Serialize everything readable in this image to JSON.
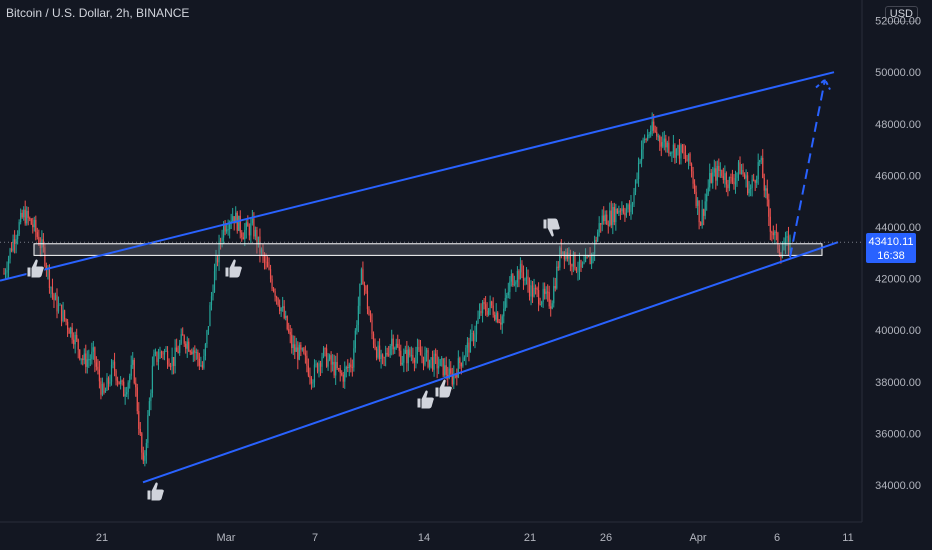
{
  "header": {
    "title": "Bitcoin / U.S. Dollar, 2h, BINANCE",
    "currency": "USD"
  },
  "price_tag": {
    "price": "43410.11",
    "countdown": "16:38"
  },
  "colors": {
    "background": "#131722",
    "up": "#26a69a",
    "down": "#ef5350",
    "channel": "#2962ff",
    "zone_fill": "#787b86",
    "zone_border": "#ffffff",
    "grid": "#1e222d"
  },
  "icons": [
    "thumbs-up-icon",
    "thumbs-down-icon"
  ],
  "chart_data": {
    "type": "candlestick",
    "title": "Bitcoin / U.S. Dollar, 2h, BINANCE",
    "ylim": [
      33000,
      52800
    ],
    "y_ticks": [
      34000,
      36000,
      38000,
      40000,
      42000,
      44000,
      46000,
      48000,
      50000,
      52000
    ],
    "y_tick_labels": [
      "34000.00",
      "36000.00",
      "38000.00",
      "40000.00",
      "42000.00",
      "44000.00",
      "46000.00",
      "48000.00",
      "50000.00",
      "52000.00"
    ],
    "x_tick_labels": [
      "21",
      "Mar",
      "7",
      "14",
      "21",
      "26",
      "Apr",
      "6",
      "11"
    ],
    "price_anchors": [
      [
        0,
        42200
      ],
      [
        1,
        43600
      ],
      [
        2,
        44500
      ],
      [
        3,
        44000
      ],
      [
        4,
        43000
      ],
      [
        5,
        41200
      ],
      [
        6,
        40500
      ],
      [
        7,
        39800
      ],
      [
        8,
        38800
      ],
      [
        9,
        39000
      ],
      [
        10,
        37400
      ],
      [
        11,
        38600
      ],
      [
        12,
        37600
      ],
      [
        13,
        38600
      ],
      [
        14,
        34600
      ],
      [
        15,
        38800
      ],
      [
        16,
        39200
      ],
      [
        17,
        38800
      ],
      [
        18,
        39700
      ],
      [
        19,
        39300
      ],
      [
        20,
        38500
      ],
      [
        21,
        41800
      ],
      [
        22,
        44000
      ],
      [
        23,
        44500
      ],
      [
        24,
        43800
      ],
      [
        25,
        44000
      ],
      [
        26,
        42800
      ],
      [
        27,
        41800
      ],
      [
        28,
        40700
      ],
      [
        29,
        39300
      ],
      [
        30,
        39000
      ],
      [
        31,
        38200
      ],
      [
        32,
        39100
      ],
      [
        33,
        38600
      ],
      [
        34,
        38200
      ],
      [
        35,
        38800
      ],
      [
        36,
        42300
      ],
      [
        37,
        39800
      ],
      [
        38,
        38600
      ],
      [
        39,
        39700
      ],
      [
        40,
        38900
      ],
      [
        41,
        39100
      ],
      [
        42,
        39000
      ],
      [
        43,
        38800
      ],
      [
        44,
        38600
      ],
      [
        45,
        38100
      ],
      [
        46,
        38900
      ],
      [
        47,
        39600
      ],
      [
        48,
        40800
      ],
      [
        49,
        40900
      ],
      [
        50,
        40400
      ],
      [
        51,
        42000
      ],
      [
        52,
        42300
      ],
      [
        53,
        41500
      ],
      [
        54,
        41300
      ],
      [
        55,
        41100
      ],
      [
        56,
        43200
      ],
      [
        57,
        42800
      ],
      [
        58,
        42300
      ],
      [
        59,
        42800
      ],
      [
        60,
        44300
      ],
      [
        61,
        44400
      ],
      [
        62,
        44800
      ],
      [
        63,
        44600
      ],
      [
        64,
        47000
      ],
      [
        65,
        47800
      ],
      [
        66,
        47400
      ],
      [
        67,
        47100
      ],
      [
        68,
        46900
      ],
      [
        69,
        46400
      ],
      [
        70,
        44200
      ],
      [
        71,
        45900
      ],
      [
        72,
        46200
      ],
      [
        73,
        45700
      ],
      [
        74,
        46300
      ],
      [
        75,
        45400
      ],
      [
        76,
        46600
      ],
      [
        77,
        44100
      ],
      [
        78,
        43100
      ],
      [
        79,
        43410
      ]
    ],
    "channel_upper": {
      "start": {
        "x": "Feb 16",
        "y": 42400
      },
      "end": {
        "x": "Apr 9",
        "y": 50000
      }
    },
    "channel_lower": {
      "start": {
        "x": "Feb 24",
        "y": 34300
      },
      "end": {
        "x": "Apr 9",
        "y": 43450
      }
    },
    "support_zone": {
      "from": 42900,
      "to": 43350
    },
    "projection_arrow": {
      "from": 42900,
      "to": 49600
    },
    "last_price": 43410.11,
    "grid": false,
    "candle_colors": {
      "up": "#26a69a",
      "down": "#ef5350"
    }
  }
}
